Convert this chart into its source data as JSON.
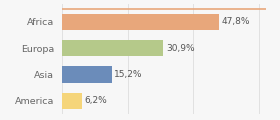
{
  "categories": [
    "Africa",
    "Europa",
    "Asia",
    "America"
  ],
  "values": [
    47.8,
    30.9,
    15.2,
    6.2
  ],
  "labels": [
    "47,8%",
    "30,9%",
    "15,2%",
    "6,2%"
  ],
  "bar_colors": [
    "#e8a77b",
    "#b5c98a",
    "#6b8cba",
    "#f5d57a"
  ],
  "background_color": "#f7f7f7",
  "xlim": [
    0,
    62
  ],
  "label_fontsize": 6.5,
  "tick_fontsize": 6.8,
  "bar_height": 0.62,
  "top_line_color": "#e8a77b",
  "grid_color": "#dddddd"
}
